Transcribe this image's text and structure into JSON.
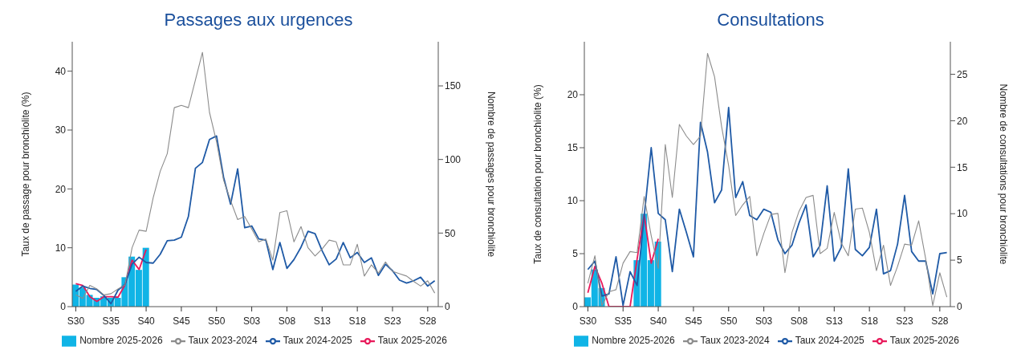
{
  "chart_data": [
    {
      "type": "line",
      "title": "Passages aux urgences",
      "ylabel": "Taux de passage pour bronchiolite (%)",
      "y2label": "Nombre de passages pour bronchiolite",
      "categories": [
        "S30",
        null,
        null,
        null,
        null,
        "S35",
        null,
        null,
        null,
        null,
        "S40",
        null,
        null,
        null,
        null,
        "S45",
        null,
        null,
        null,
        null,
        "S50",
        null,
        null,
        null,
        null,
        "S03",
        null,
        null,
        null,
        null,
        "S08",
        null,
        null,
        null,
        null,
        "S13",
        null,
        null,
        null,
        null,
        "S18",
        null,
        null,
        null,
        null,
        "S23",
        null,
        null,
        null,
        null,
        "S28",
        null
      ],
      "ylim": [
        0,
        45
      ],
      "yticks": [
        0,
        10,
        20,
        30,
        40
      ],
      "y2lim": [
        0,
        180
      ],
      "y2ticks": [
        0,
        50,
        100,
        150
      ],
      "grid": false,
      "legend": "bottom",
      "marker": "none",
      "line_style": "solid",
      "series": [
        {
          "name": "Nombre 2025-2026",
          "type": "bar",
          "axis": "y2",
          "color": "#10b4e6",
          "values": [
            15,
            13,
            8,
            6,
            7,
            6,
            6,
            20,
            34,
            25,
            40,
            null,
            null,
            null,
            null,
            null,
            null,
            null,
            null,
            null,
            null,
            null,
            null,
            null,
            null,
            null,
            null,
            null,
            null,
            null,
            null,
            null,
            null,
            null,
            null,
            null,
            null,
            null,
            null,
            null,
            null,
            null,
            null,
            null,
            null,
            null,
            null,
            null,
            null,
            null,
            null,
            null
          ]
        },
        {
          "name": "Taux 2025-2026",
          "color": "#e8195a",
          "values": [
            3.9,
            3.6,
            1.7,
            0.9,
            1.7,
            1.7,
            1.6,
            3.7,
            7.9,
            6.3,
            9.7,
            null,
            null,
            null,
            null,
            null,
            null,
            null,
            null,
            null,
            null,
            null,
            null,
            null,
            null,
            null,
            null,
            null,
            null,
            null,
            null,
            null,
            null,
            null,
            null,
            null,
            null,
            null,
            null,
            null,
            null,
            null,
            null,
            null,
            null,
            null,
            null,
            null,
            null,
            null,
            null,
            null
          ]
        },
        {
          "name": "Taux 2024-2025",
          "color": "#1f5aa6",
          "values": [
            2.6,
            3.5,
            3.1,
            2.9,
            1.9,
            0.5,
            2.8,
            3.8,
            7.2,
            8.4,
            7.5,
            7.4,
            8.9,
            11.2,
            11.3,
            11.8,
            15.3,
            23.5,
            24.5,
            28.4,
            29.0,
            22,
            17.4,
            23.4,
            13.4,
            13.7,
            11.5,
            11.3,
            6.3,
            10.9,
            6.5,
            8.0,
            10.1,
            12.8,
            12.4,
            9.5,
            7.1,
            8.1,
            10.9,
            8.3,
            9.2,
            7.5,
            8.3,
            5.3,
            7.2,
            6.1,
            4.5,
            4.0,
            4.4,
            5.0,
            3.5,
            4.4
          ]
        },
        {
          "name": "Taux 2023-2024",
          "color": "#8c8c8c",
          "values": [
            2.0,
            1.4,
            3.6,
            3.0,
            2.0,
            2.2,
            3.0,
            3.7,
            10.0,
            13.0,
            12.8,
            18.5,
            23,
            26,
            33.8,
            34.2,
            33.8,
            38.5,
            43.2,
            33,
            28.0,
            21.5,
            18,
            14.8,
            15.3,
            13.2,
            11,
            11.5,
            7.9,
            16.0,
            16.3,
            11,
            13.6,
            10,
            8.6,
            9.8,
            11.3,
            11.0,
            7.1,
            7.1,
            10.6,
            5.2,
            7.1,
            5.7,
            7.6,
            6.0,
            5.6,
            5.2,
            4.3,
            3.5,
            4.4,
            2.3
          ]
        }
      ]
    },
    {
      "type": "line",
      "title": "Consultations",
      "ylabel": "Taux de consultation pour bronchiolite (%)",
      "y2label": "Nombre de consultations pour bronchiolite",
      "categories": [
        "S30",
        null,
        null,
        null,
        null,
        "S35",
        null,
        null,
        null,
        null,
        "S40",
        null,
        null,
        null,
        null,
        "S45",
        null,
        null,
        null,
        null,
        "S50",
        null,
        null,
        null,
        null,
        "S03",
        null,
        null,
        null,
        null,
        "S08",
        null,
        null,
        null,
        null,
        "S13",
        null,
        null,
        null,
        null,
        "S18",
        null,
        null,
        null,
        null,
        "S23",
        null,
        null,
        null,
        null,
        "S28",
        null
      ],
      "ylim": [
        0,
        25
      ],
      "yticks": [
        0,
        5,
        10,
        15,
        20
      ],
      "y2lim": [
        0,
        28.5
      ],
      "y2ticks": [
        0,
        5,
        10,
        15,
        20,
        25
      ],
      "grid": false,
      "legend": "bottom",
      "marker": "none",
      "line_style": "solid",
      "series": [
        {
          "name": "Nombre 2025-2026",
          "type": "bar",
          "axis": "y2",
          "color": "#10b4e6",
          "values": [
            1,
            4,
            2,
            0,
            0,
            0,
            0,
            5,
            10,
            5,
            7,
            null,
            null,
            null,
            null,
            null,
            null,
            null,
            null,
            null,
            null,
            null,
            null,
            null,
            null,
            null,
            null,
            null,
            null,
            null,
            null,
            null,
            null,
            null,
            null,
            null,
            null,
            null,
            null,
            null,
            null,
            null,
            null,
            null,
            null,
            null,
            null,
            null,
            null,
            null,
            null,
            null
          ]
        },
        {
          "name": "Taux 2025-2026",
          "color": "#e8195a",
          "values": [
            1.3,
            3.8,
            2.2,
            0,
            0,
            0,
            0,
            4.5,
            8.7,
            4.1,
            6.4,
            null,
            null,
            null,
            null,
            null,
            null,
            null,
            null,
            null,
            null,
            null,
            null,
            null,
            null,
            null,
            null,
            null,
            null,
            null,
            null,
            null,
            null,
            null,
            null,
            null,
            null,
            null,
            null,
            null,
            null,
            null,
            null,
            null,
            null,
            null,
            null,
            null,
            null,
            null,
            null,
            null
          ]
        },
        {
          "name": "Taux 2024-2025",
          "color": "#1f5aa6",
          "values": [
            3.5,
            4.3,
            1.0,
            1.2,
            4.7,
            0.1,
            3.3,
            2.0,
            8.5,
            15.0,
            8.8,
            8.2,
            3.3,
            9.2,
            7.0,
            4.7,
            17.4,
            14.6,
            9.8,
            11.0,
            18.8,
            10.3,
            11.8,
            8.6,
            8.2,
            9.2,
            8.9,
            6.3,
            5.0,
            5.8,
            7.9,
            9.6,
            4.7,
            5.8,
            11.4,
            4.3,
            5.6,
            13.0,
            5.4,
            4.8,
            5.6,
            9.2,
            3.1,
            3.4,
            5.9,
            10.5,
            5.2,
            4.3,
            4.3,
            1.2,
            5.0,
            5.1
          ]
        },
        {
          "name": "Taux 2023-2024",
          "color": "#8c8c8c",
          "values": [
            2.2,
            4.8,
            0.1,
            1.4,
            1.6,
            4.1,
            5.2,
            5.1,
            10.4,
            6.7,
            3.6,
            15.3,
            10.3,
            17.2,
            16.1,
            15.3,
            16.1,
            23.9,
            21.7,
            17,
            13.3,
            8.6,
            9.6,
            10.4,
            4.8,
            6.9,
            8.7,
            8.8,
            3.2,
            7.0,
            9.0,
            10.3,
            10.5,
            5.0,
            5.5,
            8.9,
            6.0,
            4.8,
            9.2,
            9.3,
            7.0,
            3.4,
            5.8,
            2.0,
            3.8,
            5.9,
            5.8,
            8.1,
            4.5,
            0.1,
            3.2,
            0.9
          ]
        }
      ]
    }
  ]
}
